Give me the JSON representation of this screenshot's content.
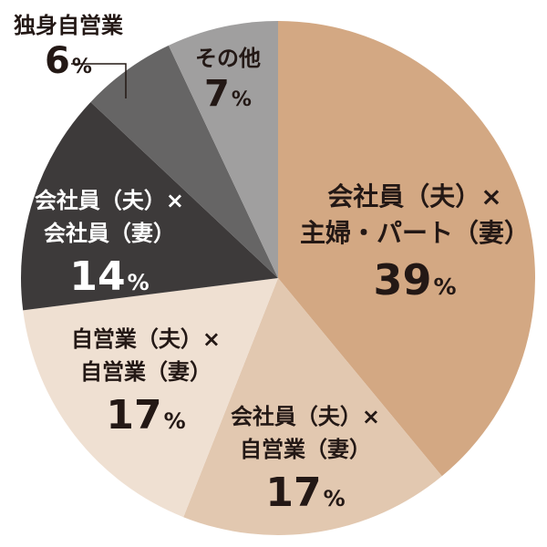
{
  "chart_data": {
    "type": "pie",
    "title": "",
    "start_angle_deg": 0,
    "direction": "clockwise",
    "slices": [
      {
        "label_lines": [
          "会社員（夫）×",
          "主婦・パート（妻）"
        ],
        "value": 39,
        "value_text": "39",
        "color": "#d3a883",
        "text_color": "#231815"
      },
      {
        "label_lines": [
          "会社員（夫）×",
          "自営業（妻）"
        ],
        "value": 17,
        "value_text": "17",
        "color": "#e2c8b0",
        "text_color": "#231815"
      },
      {
        "label_lines": [
          "自営業（夫）×",
          "自営業（妻）"
        ],
        "value": 17,
        "value_text": "17",
        "color": "#efe0d2",
        "text_color": "#231815"
      },
      {
        "label_lines": [
          "会社員（夫）×",
          "会社員（妻）"
        ],
        "value": 14,
        "value_text": "14",
        "color": "#3d3a3a",
        "text_color": "#ffffff"
      },
      {
        "label_lines": [
          "独身自営業"
        ],
        "value": 6,
        "value_text": "6",
        "color": "#666565",
        "text_color": "#231815",
        "label_outside": true
      },
      {
        "label_lines": [
          "その他"
        ],
        "value": 7,
        "value_text": "7",
        "color": "#a09f9f",
        "text_color": "#231815"
      }
    ],
    "unit": "%"
  }
}
